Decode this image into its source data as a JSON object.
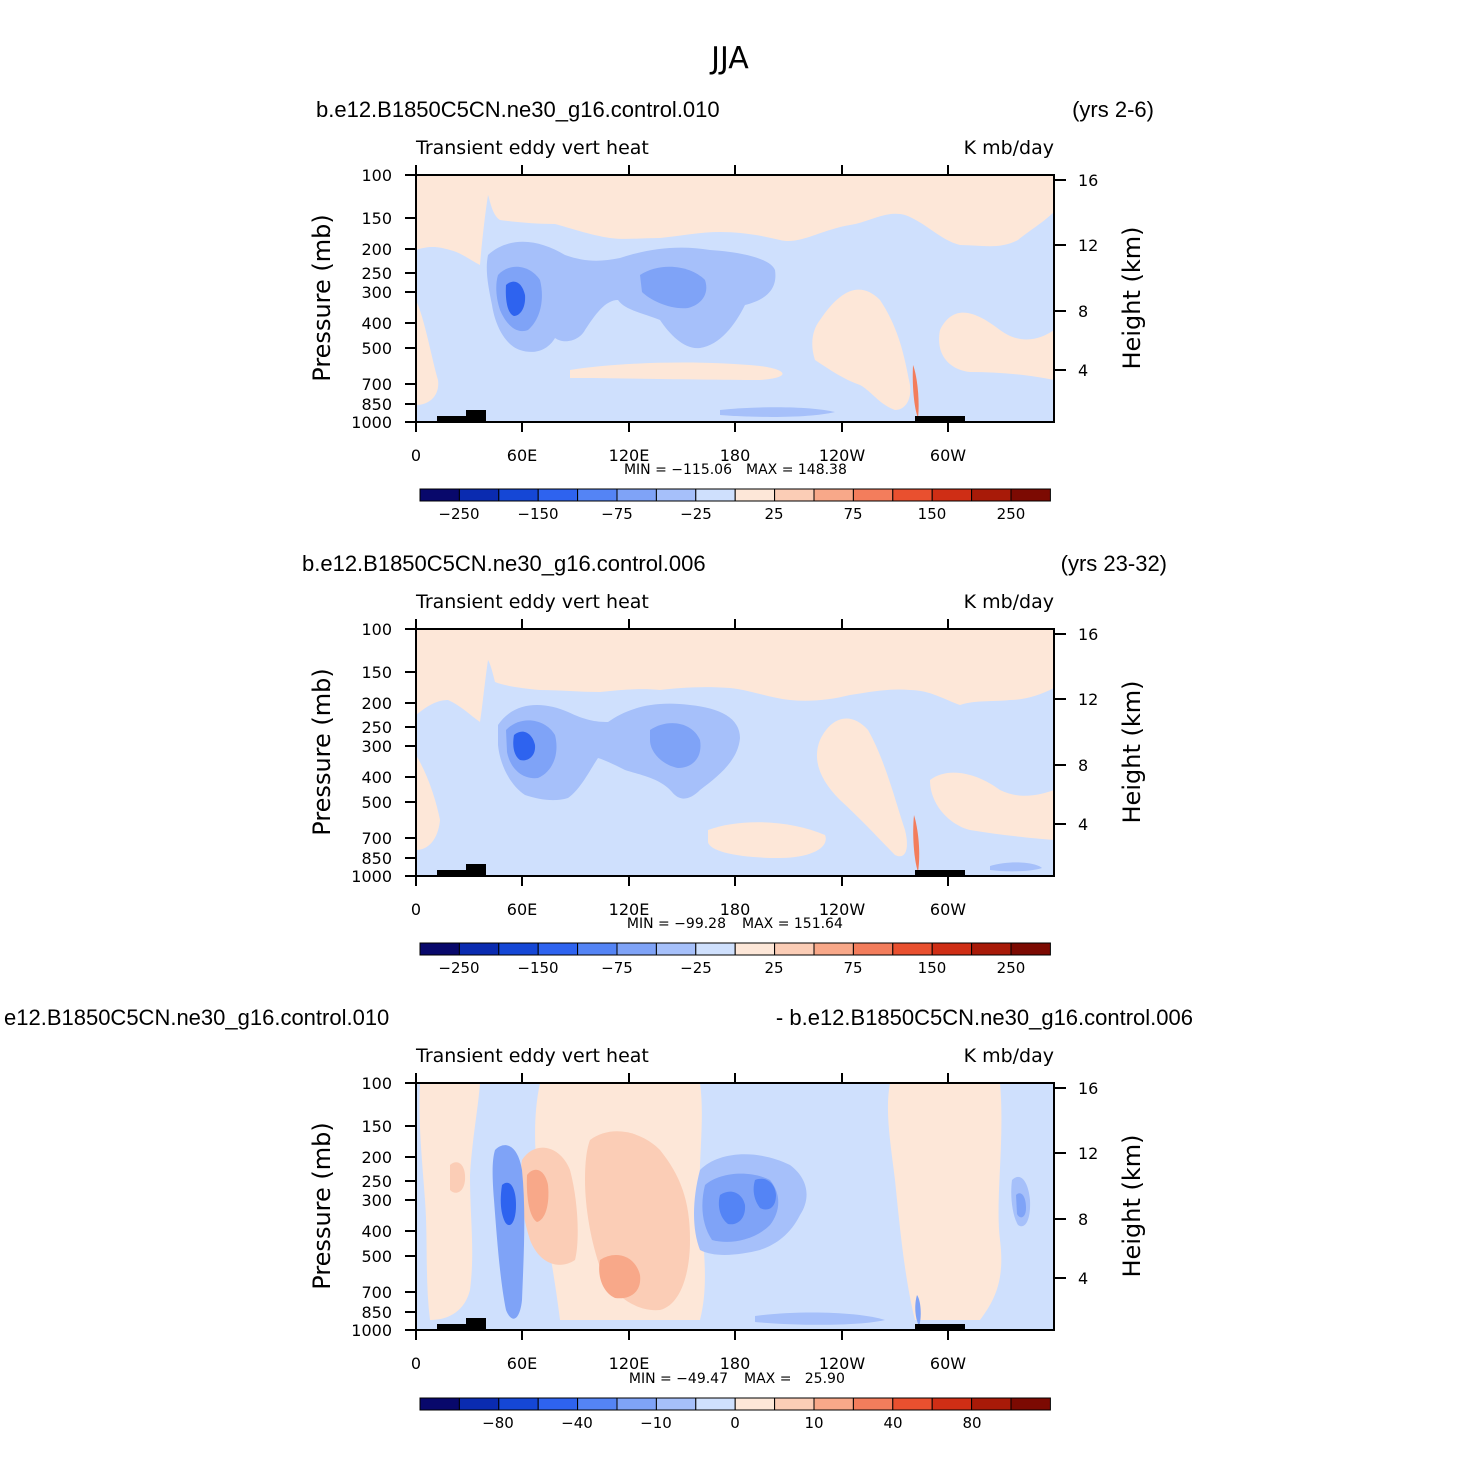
{
  "figure_title": "JJA",
  "colors": {
    "palette": [
      "#08086b",
      "#0a2bb0",
      "#1547d6",
      "#2e63ef",
      "#5484f5",
      "#7fa3f7",
      "#a6c0fa",
      "#cfe0fd",
      "#fde7d8",
      "#fbcdb6",
      "#f8a889",
      "#f37d5c",
      "#e9502f",
      "#cf2e15",
      "#a81a08",
      "#7c0a02"
    ],
    "land": "#000000"
  },
  "chart_data": [
    {
      "type": "heatmap",
      "panel": "top",
      "case_title": "b.e12.B1850C5CN.ne30_g16.control.010",
      "years": "(yrs 2-6)",
      "variable": "Transient eddy vert heat",
      "units": "K mb/day",
      "ylabel_left": "Pressure (mb)",
      "ylabel_right": "Height (km)",
      "x_ticks": [
        "0",
        "60E",
        "120E",
        "180",
        "120W",
        "60W"
      ],
      "y_ticks": [
        "100",
        "150",
        "200",
        "250",
        "300",
        "400",
        "500",
        "700",
        "850",
        "1000"
      ],
      "right_ticks": [
        "16",
        "12",
        "8",
        "4"
      ],
      "ylim": [
        1000,
        100
      ],
      "xlim": [
        0,
        360
      ],
      "min_label": "MIN = −115.06",
      "max_label": "MAX = 148.38",
      "colorbar_labels": [
        "−250",
        "−150",
        "−75",
        "−25",
        "25",
        "75",
        "150",
        "250"
      ],
      "features": [
        {
          "lon": 55,
          "p": 300,
          "value": -115
        },
        {
          "lon": 155,
          "p": 300,
          "value": -60
        },
        {
          "lon": 170,
          "p": 900,
          "value": -25
        },
        {
          "lon": 284,
          "p": 750,
          "value": 148
        }
      ]
    },
    {
      "type": "heatmap",
      "panel": "middle",
      "case_title": "b.e12.B1850C5CN.ne30_g16.control.006",
      "years": "(yrs 23-32)",
      "variable": "Transient eddy vert heat",
      "units": "K mb/day",
      "ylabel_left": "Pressure (mb)",
      "ylabel_right": "Height (km)",
      "x_ticks": [
        "0",
        "60E",
        "120E",
        "180",
        "120W",
        "60W"
      ],
      "y_ticks": [
        "100",
        "150",
        "200",
        "250",
        "300",
        "400",
        "500",
        "700",
        "850",
        "1000"
      ],
      "right_ticks": [
        "16",
        "12",
        "8",
        "4"
      ],
      "ylim": [
        1000,
        100
      ],
      "xlim": [
        0,
        360
      ],
      "min_label": "MIN = −99.28",
      "max_label": "MAX = 151.64",
      "colorbar_labels": [
        "−250",
        "−150",
        "−75",
        "−25",
        "25",
        "75",
        "150",
        "250"
      ],
      "features": [
        {
          "lon": 62,
          "p": 300,
          "value": -99
        },
        {
          "lon": 148,
          "p": 280,
          "value": -55
        },
        {
          "lon": 284,
          "p": 750,
          "value": 151
        }
      ]
    },
    {
      "type": "heatmap",
      "panel": "difference",
      "case_title_left": "e12.B1850C5CN.ne30_g16.control.010",
      "case_title_right": "- b.e12.B1850C5CN.ne30_g16.control.006",
      "variable": "Transient eddy vert heat",
      "units": "K mb/day",
      "ylabel_left": "Pressure (mb)",
      "ylabel_right": "Height (km)",
      "x_ticks": [
        "0",
        "60E",
        "120E",
        "180",
        "120W",
        "60W"
      ],
      "y_ticks": [
        "100",
        "150",
        "200",
        "250",
        "300",
        "400",
        "500",
        "700",
        "850",
        "1000"
      ],
      "right_ticks": [
        "16",
        "12",
        "8",
        "4"
      ],
      "ylim": [
        1000,
        100
      ],
      "xlim": [
        0,
        360
      ],
      "min_label": "MIN = −49.47",
      "max_label": "MAX =   25.90",
      "colorbar_labels": [
        "−80",
        "−40",
        "−10",
        "0",
        "10",
        "40",
        "80"
      ],
      "features": [
        {
          "lon": 55,
          "p": 350,
          "value": -49
        },
        {
          "lon": 70,
          "p": 300,
          "value": 26
        },
        {
          "lon": 185,
          "p": 330,
          "value": -40
        },
        {
          "lon": 120,
          "p": 650,
          "value": 20
        }
      ]
    }
  ]
}
